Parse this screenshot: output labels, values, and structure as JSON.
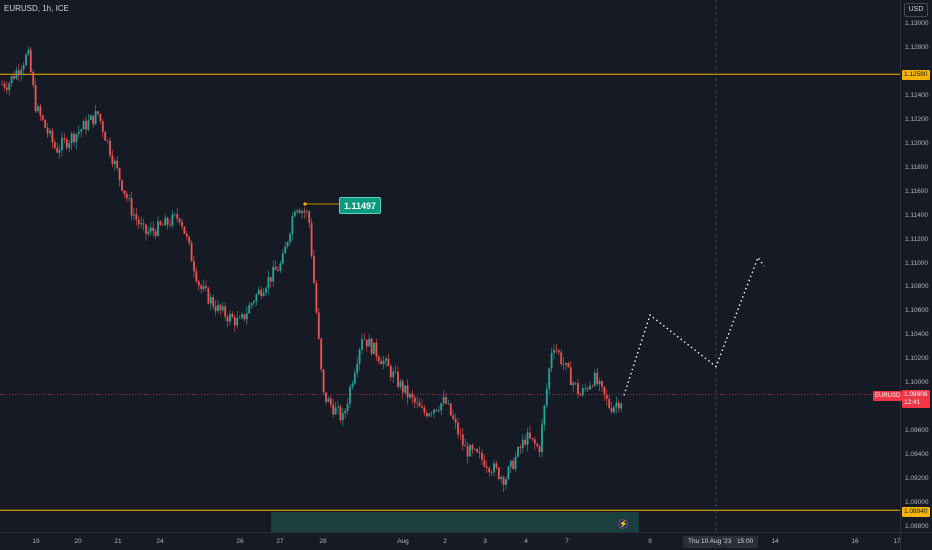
{
  "symbol_title": "EURUSD, 1h, ICE",
  "currency_button": "USD",
  "callout_price": "1.11497",
  "symbol_label": "EURUSD",
  "current_price": "1.09906",
  "countdown": "12:41",
  "resistance_price": "1.12580",
  "support_price": "1.08940",
  "crosshair_date": "Thu 10 Aug '23   15:00",
  "bolt_icon": "lightning-icon",
  "price_ticks": [
    "1.13000",
    "1.12800",
    "1.12400",
    "1.12200",
    "1.12000",
    "1.11800",
    "1.11600",
    "1.11400",
    "1.11200",
    "1.11000",
    "1.10800",
    "1.10600",
    "1.10400",
    "1.10200",
    "1.10000",
    "1.09600",
    "1.09400",
    "1.09200",
    "1.09000",
    "1.08800"
  ],
  "time_ticks": [
    "19",
    "20",
    "21",
    "24",
    "26",
    "27",
    "28",
    "Aug",
    "2",
    "3",
    "4",
    "7",
    "9",
    "14",
    "16",
    "17"
  ],
  "colors": {
    "up": "#26a69a",
    "down": "#ef5350",
    "level": "#f5b400",
    "background": "#161a25"
  },
  "chart_data": {
    "type": "candlestick",
    "symbol": "EURUSD",
    "timeframe": "1h",
    "exchange": "ICE",
    "ylim": [
      1.0886,
      1.1312
    ],
    "horizontal_levels": [
      1.1258,
      1.0894
    ],
    "peak_marker": 1.11497,
    "last_price": 1.09906,
    "projection_path": [
      {
        "x": "Aug 8",
        "y": 1.099
      },
      {
        "x": "Aug 9",
        "y": 1.1057
      },
      {
        "x": "Aug 10",
        "y": 1.1014
      },
      {
        "x": "Aug 11",
        "y": 1.1105
      },
      {
        "x": "Aug 11",
        "y": 1.1098
      }
    ],
    "price_path": [
      {
        "x": "Jul 18",
        "y": 1.125
      },
      {
        "x": "Jul 18",
        "y": 1.1275
      },
      {
        "x": "Jul 19",
        "y": 1.123
      },
      {
        "x": "Jul 19",
        "y": 1.1195
      },
      {
        "x": "Jul 20",
        "y": 1.121
      },
      {
        "x": "Jul 20",
        "y": 1.1225
      },
      {
        "x": "Jul 21",
        "y": 1.1175
      },
      {
        "x": "Jul 21",
        "y": 1.1145
      },
      {
        "x": "Jul 21",
        "y": 1.1125
      },
      {
        "x": "Jul 24",
        "y": 1.113
      },
      {
        "x": "Jul 24",
        "y": 1.114
      },
      {
        "x": "Jul 25",
        "y": 1.108
      },
      {
        "x": "Jul 25",
        "y": 1.106
      },
      {
        "x": "Jul 26",
        "y": 1.105
      },
      {
        "x": "Jul 26",
        "y": 1.107
      },
      {
        "x": "Jul 26",
        "y": 1.1085
      },
      {
        "x": "Jul 27",
        "y": 1.11
      },
      {
        "x": "Jul 27",
        "y": 1.115
      },
      {
        "x": "Jul 27",
        "y": 1.114
      },
      {
        "x": "Jul 28",
        "y": 1.099
      },
      {
        "x": "Jul 28",
        "y": 1.097
      },
      {
        "x": "Jul 31",
        "y": 1.104
      },
      {
        "x": "Jul 31",
        "y": 1.102
      },
      {
        "x": "Aug 1",
        "y": 1.0995
      },
      {
        "x": "Aug 1",
        "y": 1.0975
      },
      {
        "x": "Aug 2",
        "y": 1.0985
      },
      {
        "x": "Aug 2",
        "y": 1.0945
      },
      {
        "x": "Aug 3",
        "y": 1.0935
      },
      {
        "x": "Aug 3",
        "y": 1.092
      },
      {
        "x": "Aug 4",
        "y": 1.0955
      },
      {
        "x": "Aug 4",
        "y": 1.0945
      },
      {
        "x": "Aug 4",
        "y": 1.1035
      },
      {
        "x": "Aug 7",
        "y": 1.101
      },
      {
        "x": "Aug 7",
        "y": 1.099
      },
      {
        "x": "Aug 7",
        "y": 1.1005
      },
      {
        "x": "Aug 8",
        "y": 1.098
      },
      {
        "x": "Aug 8",
        "y": 1.0991
      }
    ]
  }
}
